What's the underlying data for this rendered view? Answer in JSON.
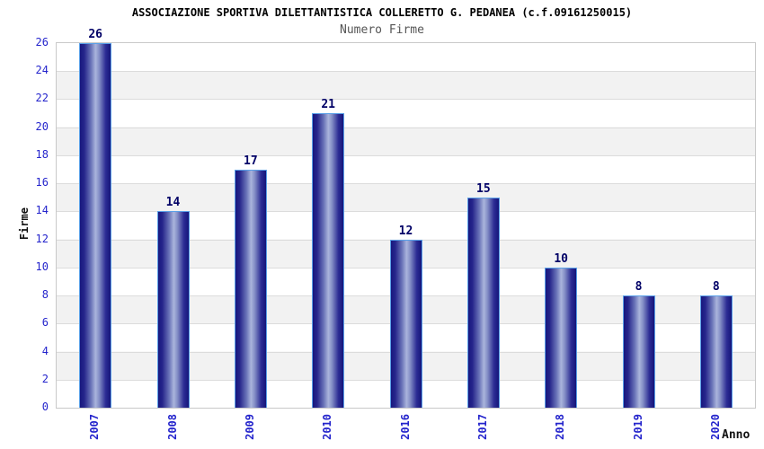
{
  "chart_data": {
    "type": "bar",
    "title": "ASSOCIAZIONE SPORTIVA DILETTANTISTICA COLLERETTO G. PEDANEA (c.f.09161250015)",
    "subtitle": "Numero Firme",
    "xlabel": "Anno",
    "ylabel": "Firme",
    "categories": [
      "2007",
      "2008",
      "2009",
      "2010",
      "2016",
      "2017",
      "2018",
      "2019",
      "2020"
    ],
    "values": [
      26,
      14,
      17,
      21,
      12,
      15,
      10,
      8,
      8
    ],
    "ylim": [
      0,
      26
    ],
    "ytick_step": 2,
    "grid": "horizontal-bands",
    "legend": "none",
    "colors": {
      "bar_dark": "#17177e",
      "bar_light": "#aab4dc",
      "bar_border": "#5aa0e8",
      "axis_tick_label": "#2424cc",
      "value_label": "#000066",
      "band_gray": "#f2f2f2",
      "gridline": "#dcdcdc",
      "plot_border": "#c9c9c9",
      "title": "#000000",
      "subtitle": "#555555"
    }
  }
}
